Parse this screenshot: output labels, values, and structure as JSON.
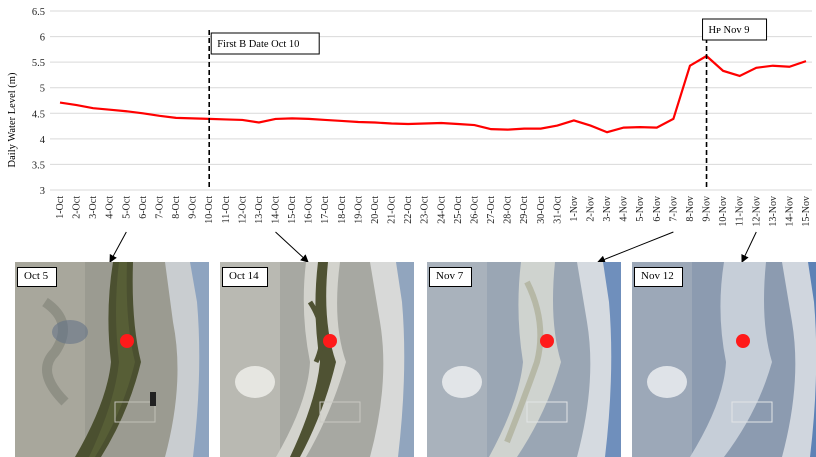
{
  "chart_data": {
    "type": "line",
    "ylabel": "Daily Water Level (m)",
    "xlabel": "",
    "ylim": [
      3,
      6.5
    ],
    "yticks": [
      "3",
      "3.5",
      "4",
      "4.5",
      "5",
      "5.5",
      "6",
      "6.5"
    ],
    "grid": true,
    "legend": "none",
    "categories": [
      "1-Oct",
      "2-Oct",
      "3-Oct",
      "4-Oct",
      "5-Oct",
      "6-Oct",
      "7-Oct",
      "8-Oct",
      "9-Oct",
      "10-Oct",
      "11-Oct",
      "12-Oct",
      "13-Oct",
      "14-Oct",
      "15-Oct",
      "16-Oct",
      "17-Oct",
      "18-Oct",
      "19-Oct",
      "20-Oct",
      "21-Oct",
      "22-Oct",
      "23-Oct",
      "24-Oct",
      "25-Oct",
      "26-Oct",
      "27-Oct",
      "28-Oct",
      "29-Oct",
      "30-Oct",
      "31-Oct",
      "1-Nov",
      "2-Nov",
      "3-Nov",
      "4-Nov",
      "5-Nov",
      "6-Nov",
      "7-Nov",
      "8-Nov",
      "9-Nov",
      "10-Nov",
      "11-Nov",
      "12-Nov",
      "13-Nov",
      "14-Nov",
      "15-Nov"
    ],
    "series": [
      {
        "name": "",
        "color": "#ff0000",
        "values": [
          4.71,
          4.66,
          4.6,
          4.57,
          4.54,
          4.5,
          4.45,
          4.41,
          4.4,
          4.39,
          4.38,
          4.37,
          4.32,
          4.39,
          4.4,
          4.39,
          4.37,
          4.35,
          4.33,
          4.32,
          4.3,
          4.29,
          4.3,
          4.31,
          4.29,
          4.27,
          4.19,
          4.18,
          4.2,
          4.2,
          4.26,
          4.36,
          4.26,
          4.13,
          4.22,
          4.23,
          4.22,
          4.39,
          5.43,
          5.62,
          5.33,
          5.23,
          5.39,
          5.43,
          5.41,
          5.52
        ]
      }
    ],
    "annotations": [
      {
        "category": "10-Oct",
        "text": "First B Date Oct 10"
      },
      {
        "category": "9-Nov",
        "text": "Hᴘ Nov 9"
      }
    ]
  },
  "insets": [
    {
      "label": "Oct 5",
      "category": "5-Oct"
    },
    {
      "label": "Oct 14",
      "category": "14-Oct"
    },
    {
      "label": "Nov 7",
      "category": "7-Nov"
    },
    {
      "label": "Nov 12",
      "category": "12-Nov"
    }
  ],
  "colors": {
    "line": "#ff0000",
    "grid": "#d9d9d9",
    "marker": "#ff1a1a"
  }
}
